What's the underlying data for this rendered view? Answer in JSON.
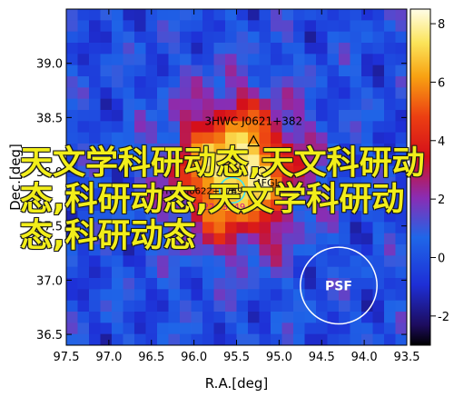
{
  "chart_data": {
    "type": "heatmap",
    "xlabel": "R.A.[deg]",
    "ylabel": "Dec.[deg]",
    "xlim": [
      97.5,
      93.5
    ],
    "ylim": [
      36.4,
      39.5
    ],
    "x_ticks": [
      "97.5",
      "97.0",
      "96.5",
      "96.0",
      "95.5",
      "95.0",
      "94.5",
      "94.0",
      "93.5"
    ],
    "y_ticks": [
      "36.5",
      "37.0",
      "37.5",
      "38.0",
      "38.5",
      "39.0"
    ],
    "colorbar": {
      "min": -3,
      "max": 8.5,
      "ticks": [
        "-2",
        "0",
        "2",
        "4",
        "6",
        "8"
      ]
    },
    "peak": {
      "ra": 95.5,
      "dec": 38.0,
      "value": 8.2
    },
    "sources": [
      {
        "name": "3HWC J0621+382",
        "ra": 95.3,
        "dec": 38.28,
        "marker": "triangle"
      },
      {
        "name": "4FGL J0622.1+3759",
        "ra": 95.2,
        "dec": 38.0,
        "marker": "circle"
      },
      {
        "name": "2HWC J0622+3749",
        "ra": 95.55,
        "dec": 37.83,
        "marker": "cross"
      },
      {
        "name": "PSR J0622+3749",
        "ra": 95.55,
        "dec": 37.83,
        "marker": "cross"
      }
    ],
    "labels": {
      "hwc": "3HWC J0621+382",
      "fgl": "4FGL",
      "hwc2": "2HWC J0622+3749",
      "psr": "PSR J0622+3749",
      "psf": "PSF"
    },
    "psf_circle": {
      "ra": 94.3,
      "dec": 36.95,
      "radius_deg": 0.45
    }
  },
  "overlay_text": "天文学科研动态,天文科研动态,科研动态,天文学科研动态,科研动态"
}
